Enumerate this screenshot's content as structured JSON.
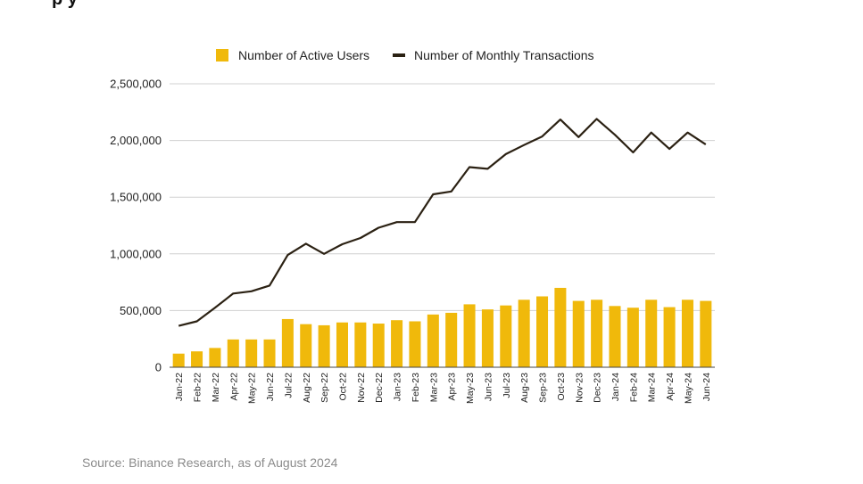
{
  "chart_data": {
    "type": "bar+line",
    "categories": [
      "Jan-22",
      "Feb-22",
      "Mar-22",
      "Apr-22",
      "May-22",
      "Jun-22",
      "Jul-22",
      "Aug-22",
      "Sep-22",
      "Oct-22",
      "Nov-22",
      "Dec-22",
      "Jan-23",
      "Feb-23",
      "Mar-23",
      "Apr-23",
      "May-23",
      "Jun-23",
      "Jul-23",
      "Aug-23",
      "Sep-23",
      "Oct-23",
      "Nov-23",
      "Dec-23",
      "Jan-24",
      "Feb-24",
      "Mar-24",
      "Apr-24",
      "May-24",
      "Jun-24"
    ],
    "series": [
      {
        "name": "Number of Active Users",
        "kind": "bar",
        "color": "#F0B90B",
        "values": [
          120000,
          140000,
          170000,
          245000,
          245000,
          245000,
          425000,
          380000,
          370000,
          395000,
          395000,
          385000,
          415000,
          405000,
          465000,
          480000,
          555000,
          510000,
          545000,
          595000,
          625000,
          700000,
          585000,
          595000,
          540000,
          525000,
          595000,
          530000,
          595000,
          585000
        ]
      },
      {
        "name": "Number of Monthly Transactions",
        "kind": "line",
        "color": "#2B2113",
        "values": [
          365000,
          405000,
          525000,
          650000,
          670000,
          720000,
          990000,
          1090000,
          1000000,
          1085000,
          1140000,
          1230000,
          1280000,
          1280000,
          1525000,
          1550000,
          1765000,
          1750000,
          1880000,
          1960000,
          2035000,
          2185000,
          2030000,
          2190000,
          2050000,
          1895000,
          2070000,
          1925000,
          2070000,
          1965000
        ]
      }
    ],
    "yticks": [
      0,
      500000,
      1000000,
      1500000,
      2000000,
      2500000
    ],
    "ytick_labels": [
      "0",
      "500,000",
      "1,000,000",
      "1,500,000",
      "2,000,000",
      "2,500,000"
    ],
    "ylim": [
      0,
      2500000
    ],
    "grid": true,
    "legend_position": "top"
  },
  "header": {
    "title_fragment": "p y"
  },
  "source_note": "Source: Binance Research, as of August 2024"
}
